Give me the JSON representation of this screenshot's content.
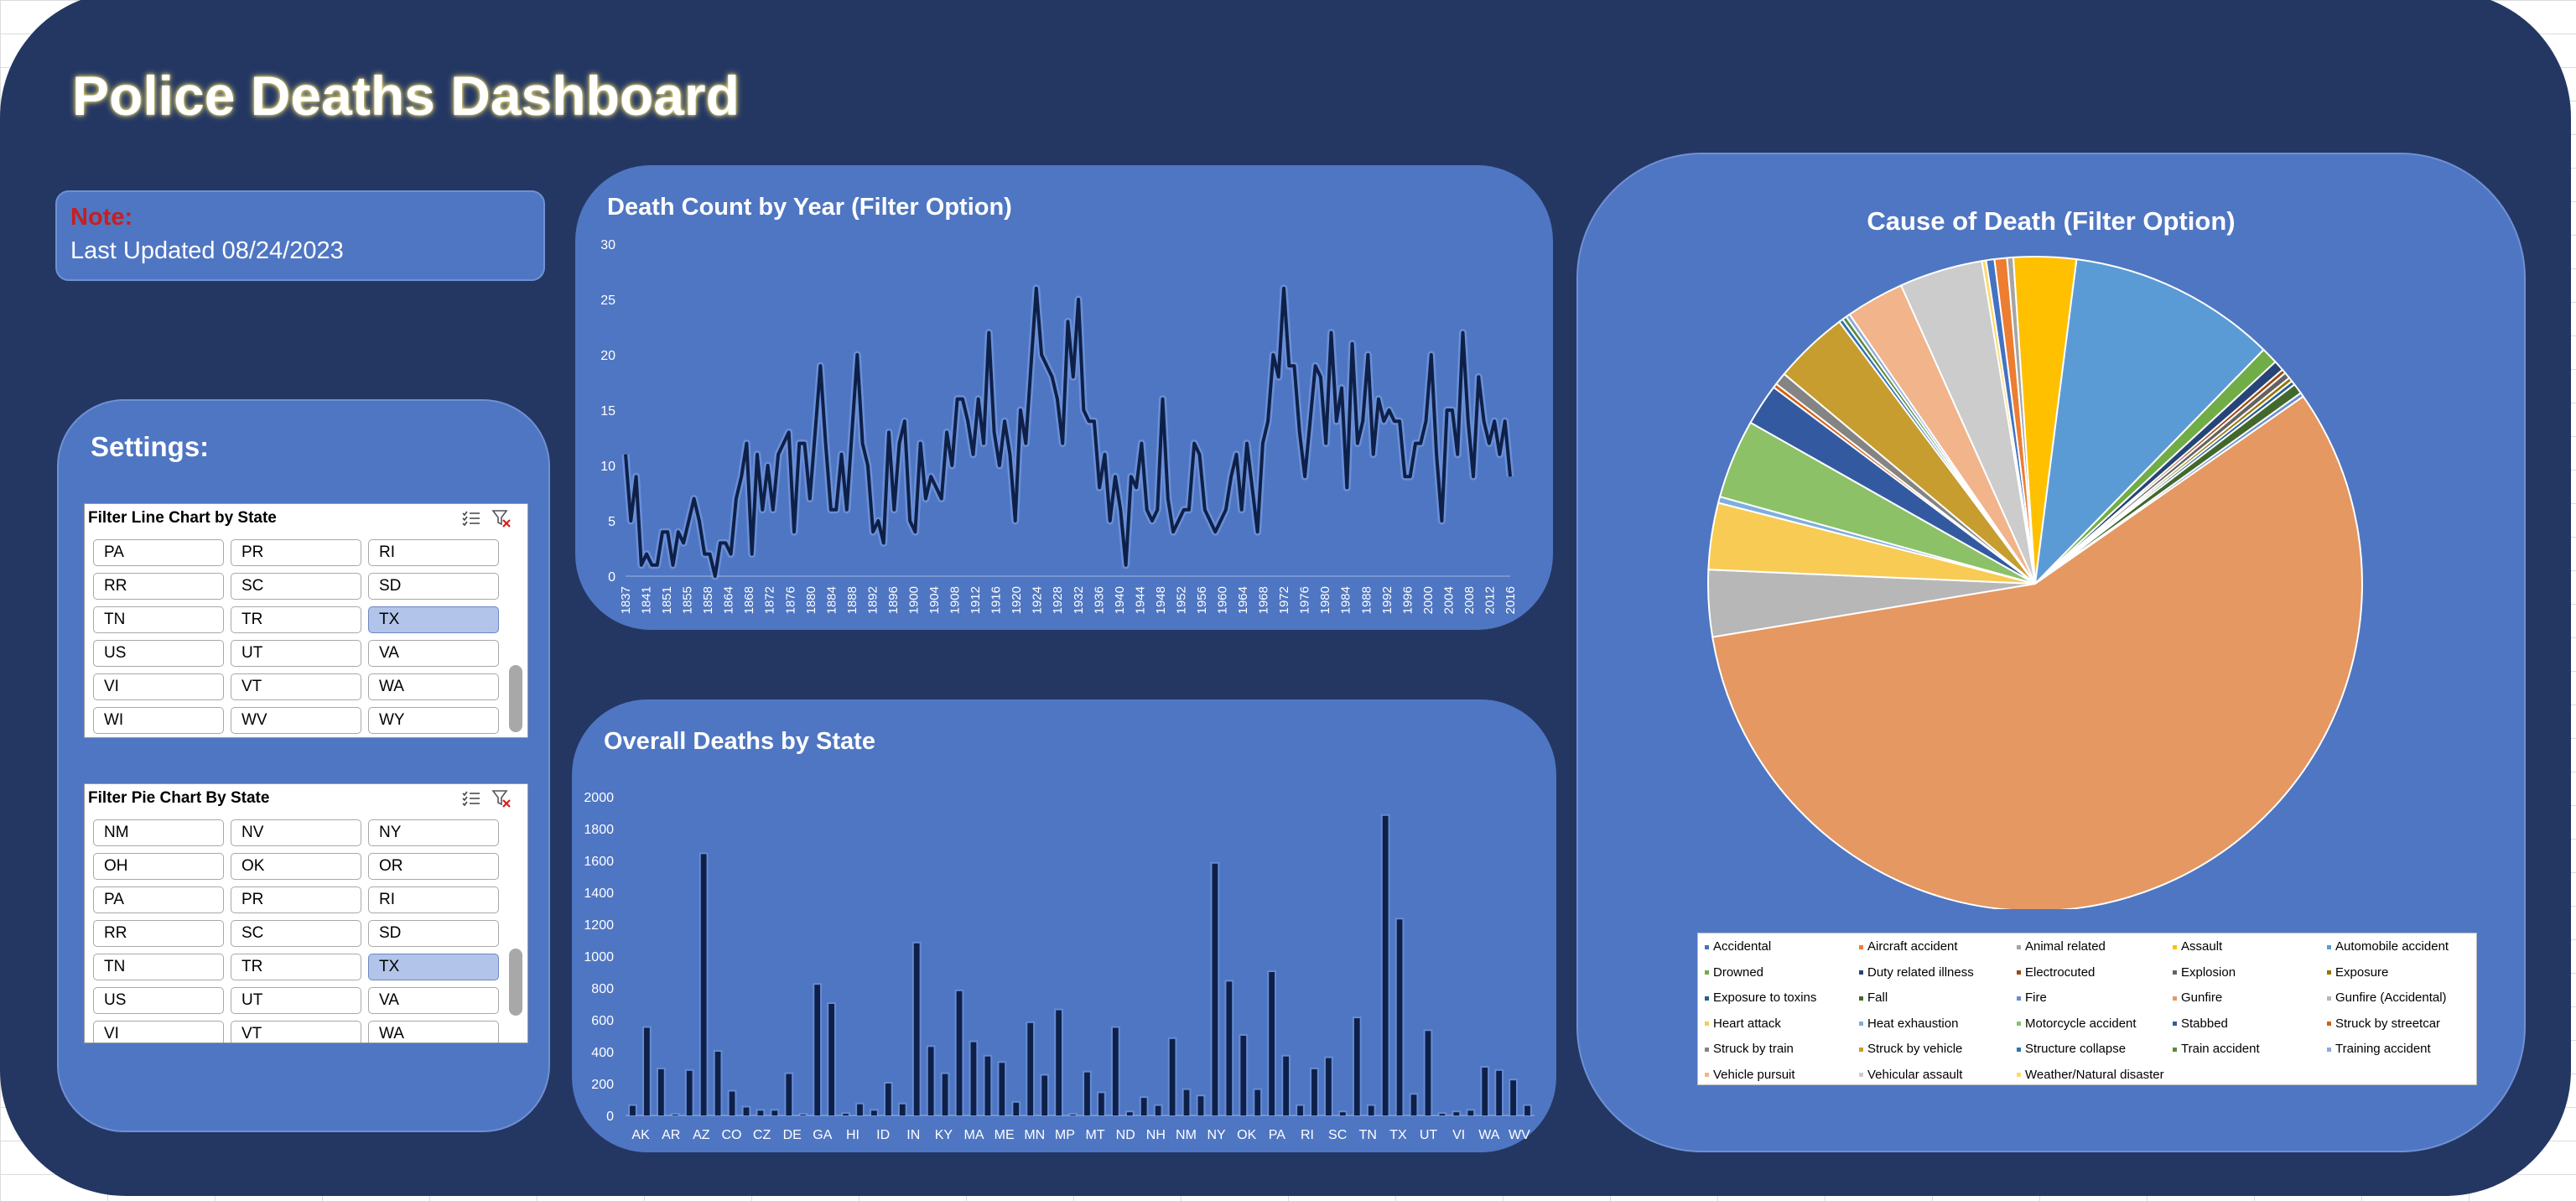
{
  "dashboard": {
    "title": "Police Deaths Dashboard",
    "note": {
      "label": "Note:",
      "text": "Last Updated 08/24/2023"
    },
    "settings_title": "Settings:"
  },
  "colors": {
    "background": "#243763",
    "panel": "#4f76c2",
    "line": "#0e2048",
    "note_label": "#c71f1f",
    "selected_item": "#b3c4ea"
  },
  "slicers": [
    {
      "title": "Filter Line Chart by State",
      "icons": [
        "multi-select-icon",
        "clear-filter-icon"
      ],
      "items": [
        "PA",
        "PR",
        "RI",
        "RR",
        "SC",
        "SD",
        "TN",
        "TR",
        "TX",
        "US",
        "UT",
        "VA",
        "VI",
        "VT",
        "WA",
        "WI",
        "WV",
        "WY"
      ],
      "selected": [
        "TX"
      ]
    },
    {
      "title": "Filter Pie Chart By State",
      "icons": [
        "multi-select-icon",
        "clear-filter-icon"
      ],
      "items": [
        "NM",
        "NV",
        "NY",
        "OH",
        "OK",
        "OR",
        "PA",
        "PR",
        "RI",
        "RR",
        "SC",
        "SD",
        "TN",
        "TR",
        "TX",
        "US",
        "UT",
        "VA",
        "VI",
        "VT",
        "WA"
      ],
      "selected": [
        "TX"
      ]
    }
  ],
  "chart_data": [
    {
      "type": "line",
      "title": "Death Count by Year (Filter Option)",
      "xlabel": "",
      "ylabel": "",
      "ylim": [
        0,
        30
      ],
      "yticks": [
        0,
        5,
        10,
        15,
        20,
        25,
        30
      ],
      "x_tick_labels": [
        "1837",
        "1841",
        "1851",
        "1855",
        "1858",
        "1864",
        "1868",
        "1872",
        "1876",
        "1880",
        "1884",
        "1888",
        "1892",
        "1896",
        "1900",
        "1904",
        "1908",
        "1912",
        "1916",
        "1920",
        "1924",
        "1928",
        "1932",
        "1936",
        "1940",
        "1944",
        "1948",
        "1952",
        "1956",
        "1960",
        "1964",
        "1968",
        "1972",
        "1976",
        "1980",
        "1984",
        "1988",
        "1992",
        "1996",
        "2000",
        "2004",
        "2008",
        "2012",
        "2016"
      ],
      "series": [
        {
          "values": [
            11,
            5,
            9,
            1,
            2,
            1,
            1,
            4,
            4,
            1,
            4,
            3,
            5,
            7,
            5,
            2,
            2,
            0,
            3,
            3,
            2,
            7,
            9,
            12,
            2,
            11,
            6,
            10,
            6,
            11,
            12,
            13,
            4,
            12,
            12,
            7,
            13,
            19,
            12,
            6,
            6,
            11,
            6,
            13,
            20,
            12,
            10,
            4,
            5,
            3,
            13,
            6,
            12,
            14,
            5,
            4,
            12,
            7,
            9,
            8,
            7,
            13,
            10,
            16,
            16,
            14,
            11,
            16,
            12,
            22,
            13,
            10,
            14,
            11,
            5,
            15,
            12,
            19,
            26,
            20,
            19,
            18,
            16,
            12,
            23,
            18,
            25,
            15,
            14,
            14,
            8,
            11,
            5,
            9,
            6,
            1,
            9,
            8,
            12,
            6,
            5,
            6,
            16,
            7,
            4,
            5,
            6,
            6,
            12,
            11,
            6,
            5,
            4,
            5,
            6,
            9,
            11,
            6,
            12,
            8,
            4,
            12,
            14,
            20,
            18,
            26,
            19,
            19,
            13,
            9,
            14,
            19,
            18,
            12,
            22,
            14,
            17,
            8,
            21,
            12,
            14,
            20,
            11,
            16,
            14,
            15,
            14,
            14,
            9,
            9,
            12,
            12,
            14,
            20,
            11,
            5,
            15,
            15,
            11,
            22,
            14,
            9,
            18,
            14,
            12,
            14,
            11,
            14,
            9
          ]
        }
      ]
    },
    {
      "type": "bar",
      "title": "Overall Deaths by State",
      "xlabel": "",
      "ylabel": "",
      "ylim": [
        0,
        2000
      ],
      "yticks": [
        0,
        200,
        400,
        600,
        800,
        1000,
        1200,
        1400,
        1600,
        1800,
        2000
      ],
      "x_tick_labels": [
        "AK",
        "AR",
        "AZ",
        "CO",
        "CZ",
        "DE",
        "GA",
        "HI",
        "ID",
        "IN",
        "KY",
        "MA",
        "ME",
        "MN",
        "MP",
        "MT",
        "ND",
        "NH",
        "NM",
        "NY",
        "OK",
        "PA",
        "RI",
        "SC",
        "TN",
        "TX",
        "UT",
        "VI",
        "WA",
        "WV"
      ],
      "values": [
        60,
        550,
        290,
        5,
        280,
        1640,
        400,
        150,
        50,
        30,
        30,
        260,
        5,
        820,
        700,
        10,
        70,
        30,
        200,
        70,
        1080,
        430,
        260,
        780,
        460,
        370,
        330,
        80,
        580,
        250,
        660,
        5,
        270,
        140,
        550,
        20,
        110,
        60,
        480,
        160,
        120,
        1580,
        840,
        500,
        160,
        900,
        370,
        60,
        290,
        360,
        20,
        610,
        60,
        1880,
        1230,
        130,
        530,
        10,
        20,
        30,
        300,
        280,
        220,
        60
      ]
    },
    {
      "type": "pie",
      "title": "Cause of Death (Filter Option)",
      "legend_position": "bottom",
      "slices": [
        {
          "label": "Accidental",
          "value": 0.4,
          "color": "#4472c4"
        },
        {
          "label": "Aircraft accident",
          "value": 0.6,
          "color": "#ed7d31"
        },
        {
          "label": "Animal related",
          "value": 0.3,
          "color": "#a5a5a5"
        },
        {
          "label": "Assault",
          "value": 3.0,
          "color": "#ffc000"
        },
        {
          "label": "Automobile accident",
          "value": 10.0,
          "color": "#5b9bd5"
        },
        {
          "label": "Drowned",
          "value": 0.8,
          "color": "#70ad47"
        },
        {
          "label": "Duty related illness",
          "value": 0.5,
          "color": "#264478"
        },
        {
          "label": "Electrocuted",
          "value": 0.2,
          "color": "#9e480e"
        },
        {
          "label": "Explosion",
          "value": 0.3,
          "color": "#636363"
        },
        {
          "label": "Exposure",
          "value": 0.2,
          "color": "#997300"
        },
        {
          "label": "Exposure to toxins",
          "value": 0.2,
          "color": "#255e91"
        },
        {
          "label": "Fall",
          "value": 0.5,
          "color": "#43682b"
        },
        {
          "label": "Fire",
          "value": 0.2,
          "color": "#698ed0"
        },
        {
          "label": "Gunfire",
          "value": 55.5,
          "color": "#e59862"
        },
        {
          "label": "Gunfire (Accidental)",
          "value": 3.2,
          "color": "#b7b7b7"
        },
        {
          "label": "Heart attack",
          "value": 3.2,
          "color": "#f8cb54"
        },
        {
          "label": "Heat exhaustion",
          "value": 0.3,
          "color": "#7cafdd"
        },
        {
          "label": "Motorcycle accident",
          "value": 3.8,
          "color": "#8cc168"
        },
        {
          "label": "Stabbed",
          "value": 2.0,
          "color": "#335aa1"
        },
        {
          "label": "Struck by streetcar",
          "value": 0.2,
          "color": "#d26012"
        },
        {
          "label": "Struck by train",
          "value": 0.6,
          "color": "#848484"
        },
        {
          "label": "Struck by vehicle",
          "value": 3.6,
          "color": "#c69d2e"
        },
        {
          "label": "Structure collapse",
          "value": 0.2,
          "color": "#2f73b5"
        },
        {
          "label": "Train accident",
          "value": 0.2,
          "color": "#5a8a39"
        },
        {
          "label": "Training accident",
          "value": 0.2,
          "color": "#8faadc"
        },
        {
          "label": "Vehicle pursuit",
          "value": 2.8,
          "color": "#f1b48b"
        },
        {
          "label": "Vehicular assault",
          "value": 4.0,
          "color": "#cccccc"
        },
        {
          "label": "Weather/Natural disaster",
          "value": 0.2,
          "color": "#ffd966"
        }
      ]
    }
  ]
}
